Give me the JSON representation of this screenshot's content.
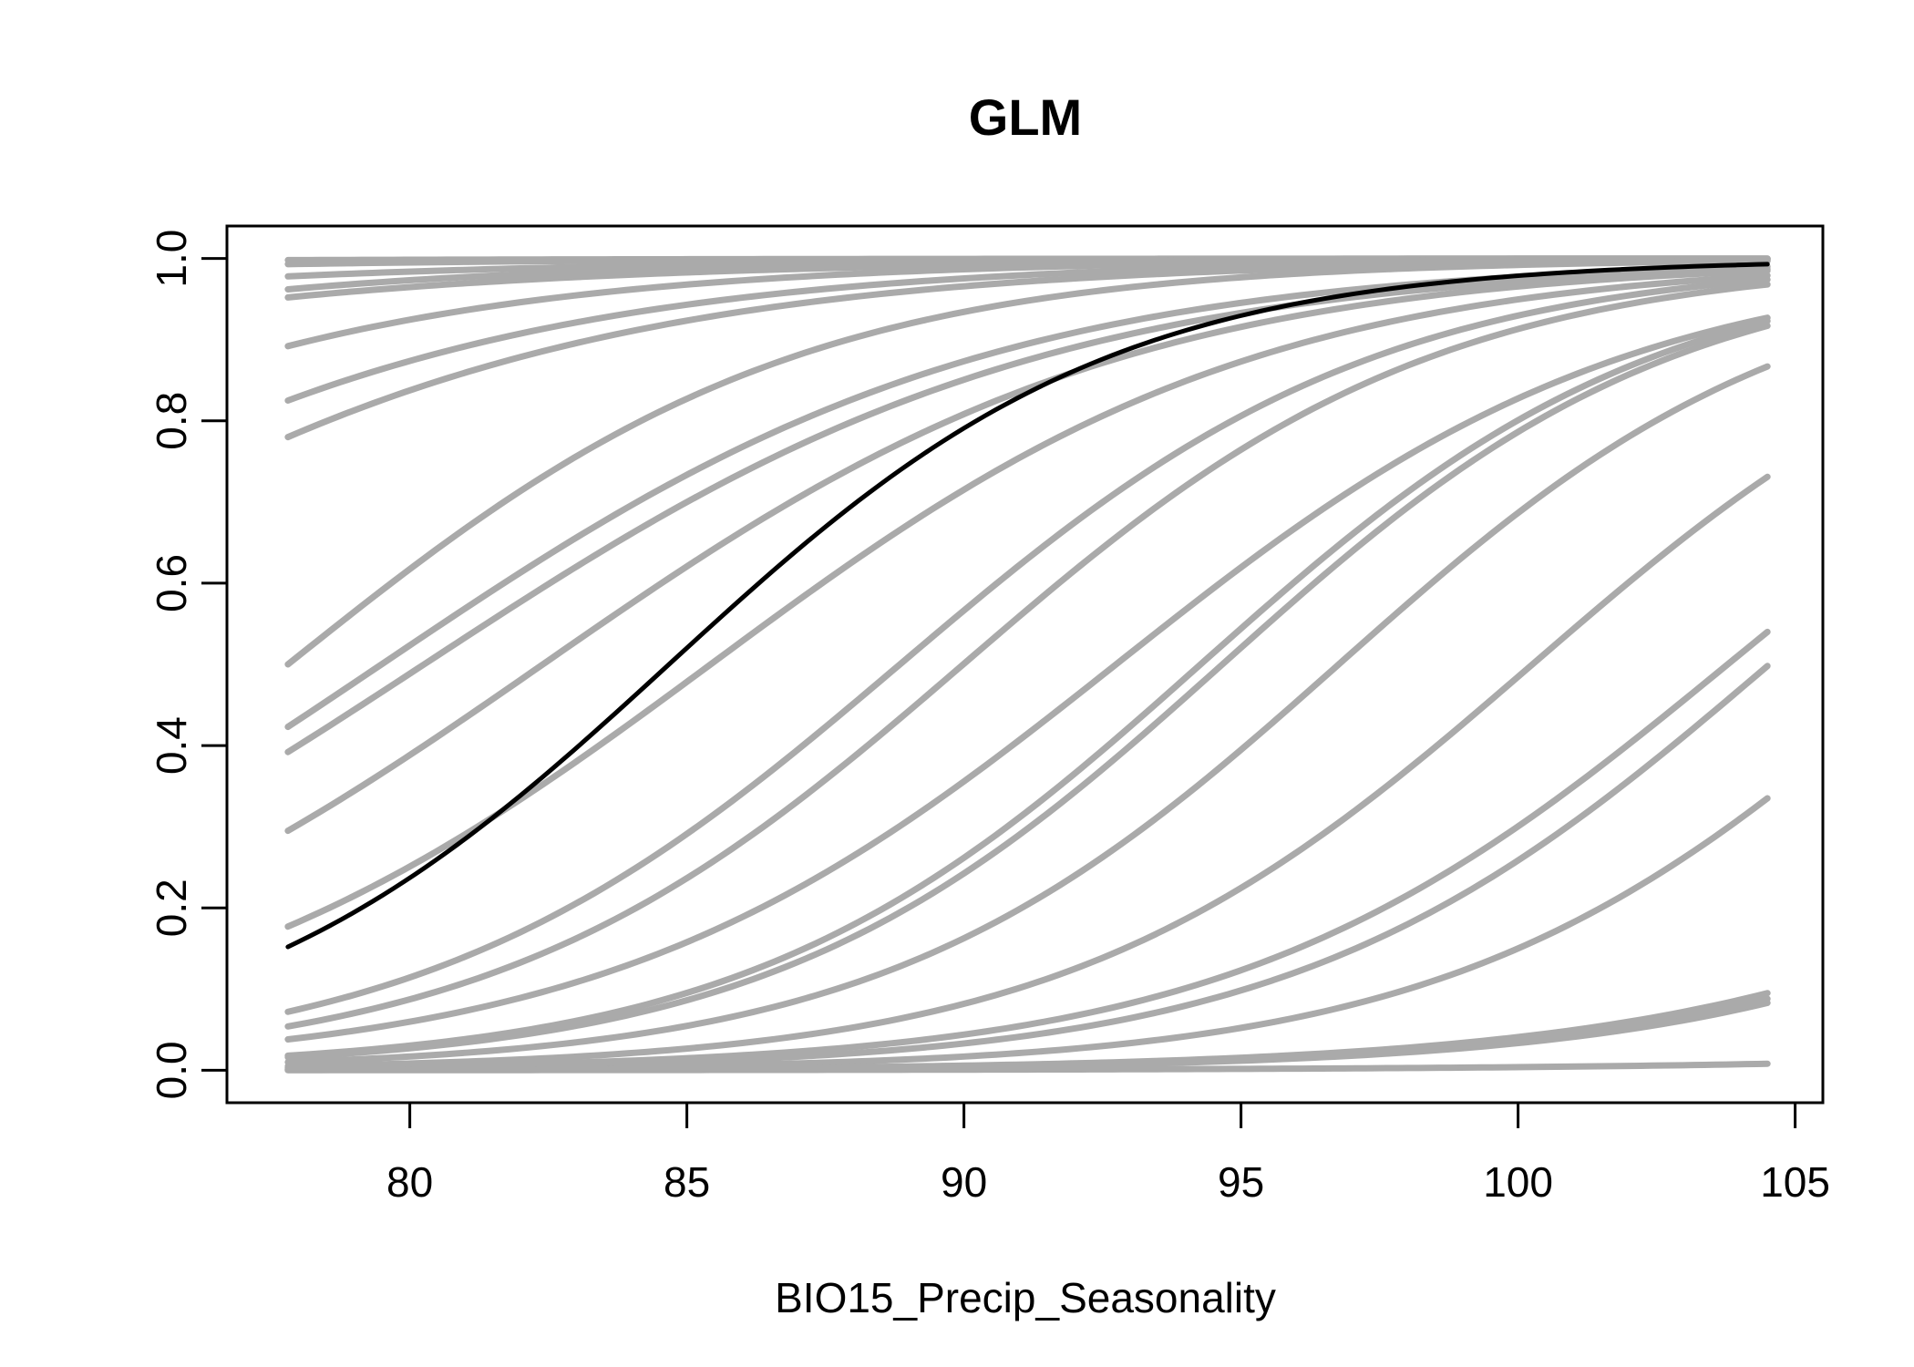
{
  "chart_data": {
    "type": "line",
    "title": "GLM",
    "xlabel": "BIO15_Precip_Seasonality",
    "ylabel": "",
    "xlim": [
      76.7,
      105.5
    ],
    "ylim": [
      -0.04,
      1.04
    ],
    "x_range": [
      77.8,
      104.5
    ],
    "x_ticks": [
      80,
      85,
      90,
      95,
      100,
      105
    ],
    "x_tick_labels": [
      "80",
      "85",
      "90",
      "95",
      "100",
      "105"
    ],
    "y_ticks": [
      0.0,
      0.2,
      0.4,
      0.6,
      0.8,
      1.0
    ],
    "y_tick_labels": [
      "0.0",
      "0.2",
      "0.4",
      "0.6",
      "0.8",
      "1.0"
    ],
    "grid": false,
    "legend": "none",
    "colors": {
      "ensemble": "#aaaaaa",
      "mean": "#000000",
      "axis": "#000000"
    },
    "series_note_order": "endpoints at x=77.8 and x=104.5",
    "series": [
      {
        "role": "ensemble",
        "y_start": 0.998,
        "y_end": 0.9999
      },
      {
        "role": "ensemble",
        "y_start": 0.993,
        "y_end": 0.9999
      },
      {
        "role": "ensemble",
        "y_start": 0.978,
        "y_end": 0.9995
      },
      {
        "role": "ensemble",
        "y_start": 0.962,
        "y_end": 0.9995
      },
      {
        "role": "ensemble",
        "y_start": 0.952,
        "y_end": 0.999
      },
      {
        "role": "ensemble",
        "y_start": 0.892,
        "y_end": 0.999
      },
      {
        "role": "ensemble",
        "y_start": 0.825,
        "y_end": 0.998
      },
      {
        "role": "ensemble",
        "y_start": 0.78,
        "y_end": 0.997
      },
      {
        "role": "ensemble",
        "y_start": 0.5,
        "y_end": 0.997
      },
      {
        "role": "ensemble",
        "y_start": 0.423,
        "y_end": 0.99
      },
      {
        "role": "ensemble",
        "y_start": 0.392,
        "y_end": 0.987
      },
      {
        "role": "ensemble",
        "y_start": 0.295,
        "y_end": 0.985
      },
      {
        "role": "ensemble",
        "y_start": 0.177,
        "y_end": 0.979
      },
      {
        "role": "ensemble",
        "y_start": 0.072,
        "y_end": 0.974
      },
      {
        "role": "ensemble",
        "y_start": 0.054,
        "y_end": 0.968
      },
      {
        "role": "ensemble",
        "y_start": 0.038,
        "y_end": 0.927
      },
      {
        "role": "ensemble",
        "y_start": 0.018,
        "y_end": 0.923
      },
      {
        "role": "ensemble",
        "y_start": 0.016,
        "y_end": 0.917
      },
      {
        "role": "ensemble",
        "y_start": 0.01,
        "y_end": 0.867
      },
      {
        "role": "ensemble",
        "y_start": 0.005,
        "y_end": 0.731
      },
      {
        "role": "ensemble",
        "y_start": 0.003,
        "y_end": 0.54
      },
      {
        "role": "ensemble",
        "y_start": 0.002,
        "y_end": 0.498
      },
      {
        "role": "ensemble",
        "y_start": 0.001,
        "y_end": 0.335
      },
      {
        "role": "ensemble",
        "y_start": 0.0005,
        "y_end": 0.095
      },
      {
        "role": "ensemble",
        "y_start": 0.0004,
        "y_end": 0.088
      },
      {
        "role": "ensemble",
        "y_start": 0.0003,
        "y_end": 0.083
      },
      {
        "role": "ensemble",
        "y_start": 0.0001,
        "y_end": 0.008
      },
      {
        "role": "mean",
        "y_start": 0.152,
        "y_end": 0.993
      }
    ]
  }
}
